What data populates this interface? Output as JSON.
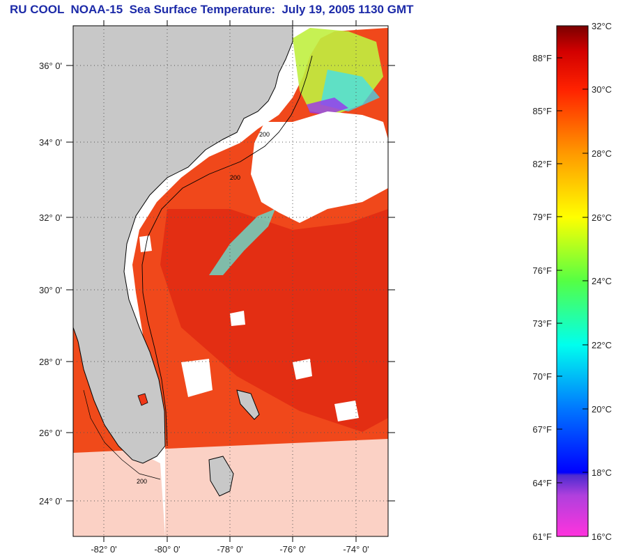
{
  "title": "RU COOL  NOAA-15  Sea Surface Temperature:  July 19, 2005 1130 GMT",
  "map": {
    "lat_labels": [
      "36° 0'",
      "34° 0'",
      "32° 0'",
      "30° 0'",
      "28° 0'",
      "26° 0'",
      "24° 0'"
    ],
    "lon_labels": [
      "-82° 0'",
      "-80° 0'",
      "-78° 0'",
      "-76° 0'",
      "-74° 0'"
    ],
    "isobath_labels": [
      "200",
      "200",
      "200"
    ],
    "colors": {
      "land": "#c8c8c8",
      "warm_sst": "#f04518",
      "warmer_sst": "#e52a10",
      "cloud": "#ffffff",
      "coast": "#000000"
    }
  },
  "colorbar": {
    "fahrenheit_labels": [
      "88°F",
      "85°F",
      "82°F",
      "79°F",
      "76°F",
      "73°F",
      "70°F",
      "67°F",
      "64°F",
      "61°F"
    ],
    "celsius_labels": [
      "32°C",
      "30°C",
      "28°C",
      "26°C",
      "24°C",
      "22°C",
      "20°C",
      "18°C",
      "16°C"
    ],
    "colors": [
      "#ff33cc",
      "#7a22cc",
      "#0000ff",
      "#0099ff",
      "#00ffee",
      "#33ff66",
      "#ccff00",
      "#ffee00",
      "#ff9900",
      "#ff3300",
      "#dd0000",
      "#8b0000"
    ]
  }
}
